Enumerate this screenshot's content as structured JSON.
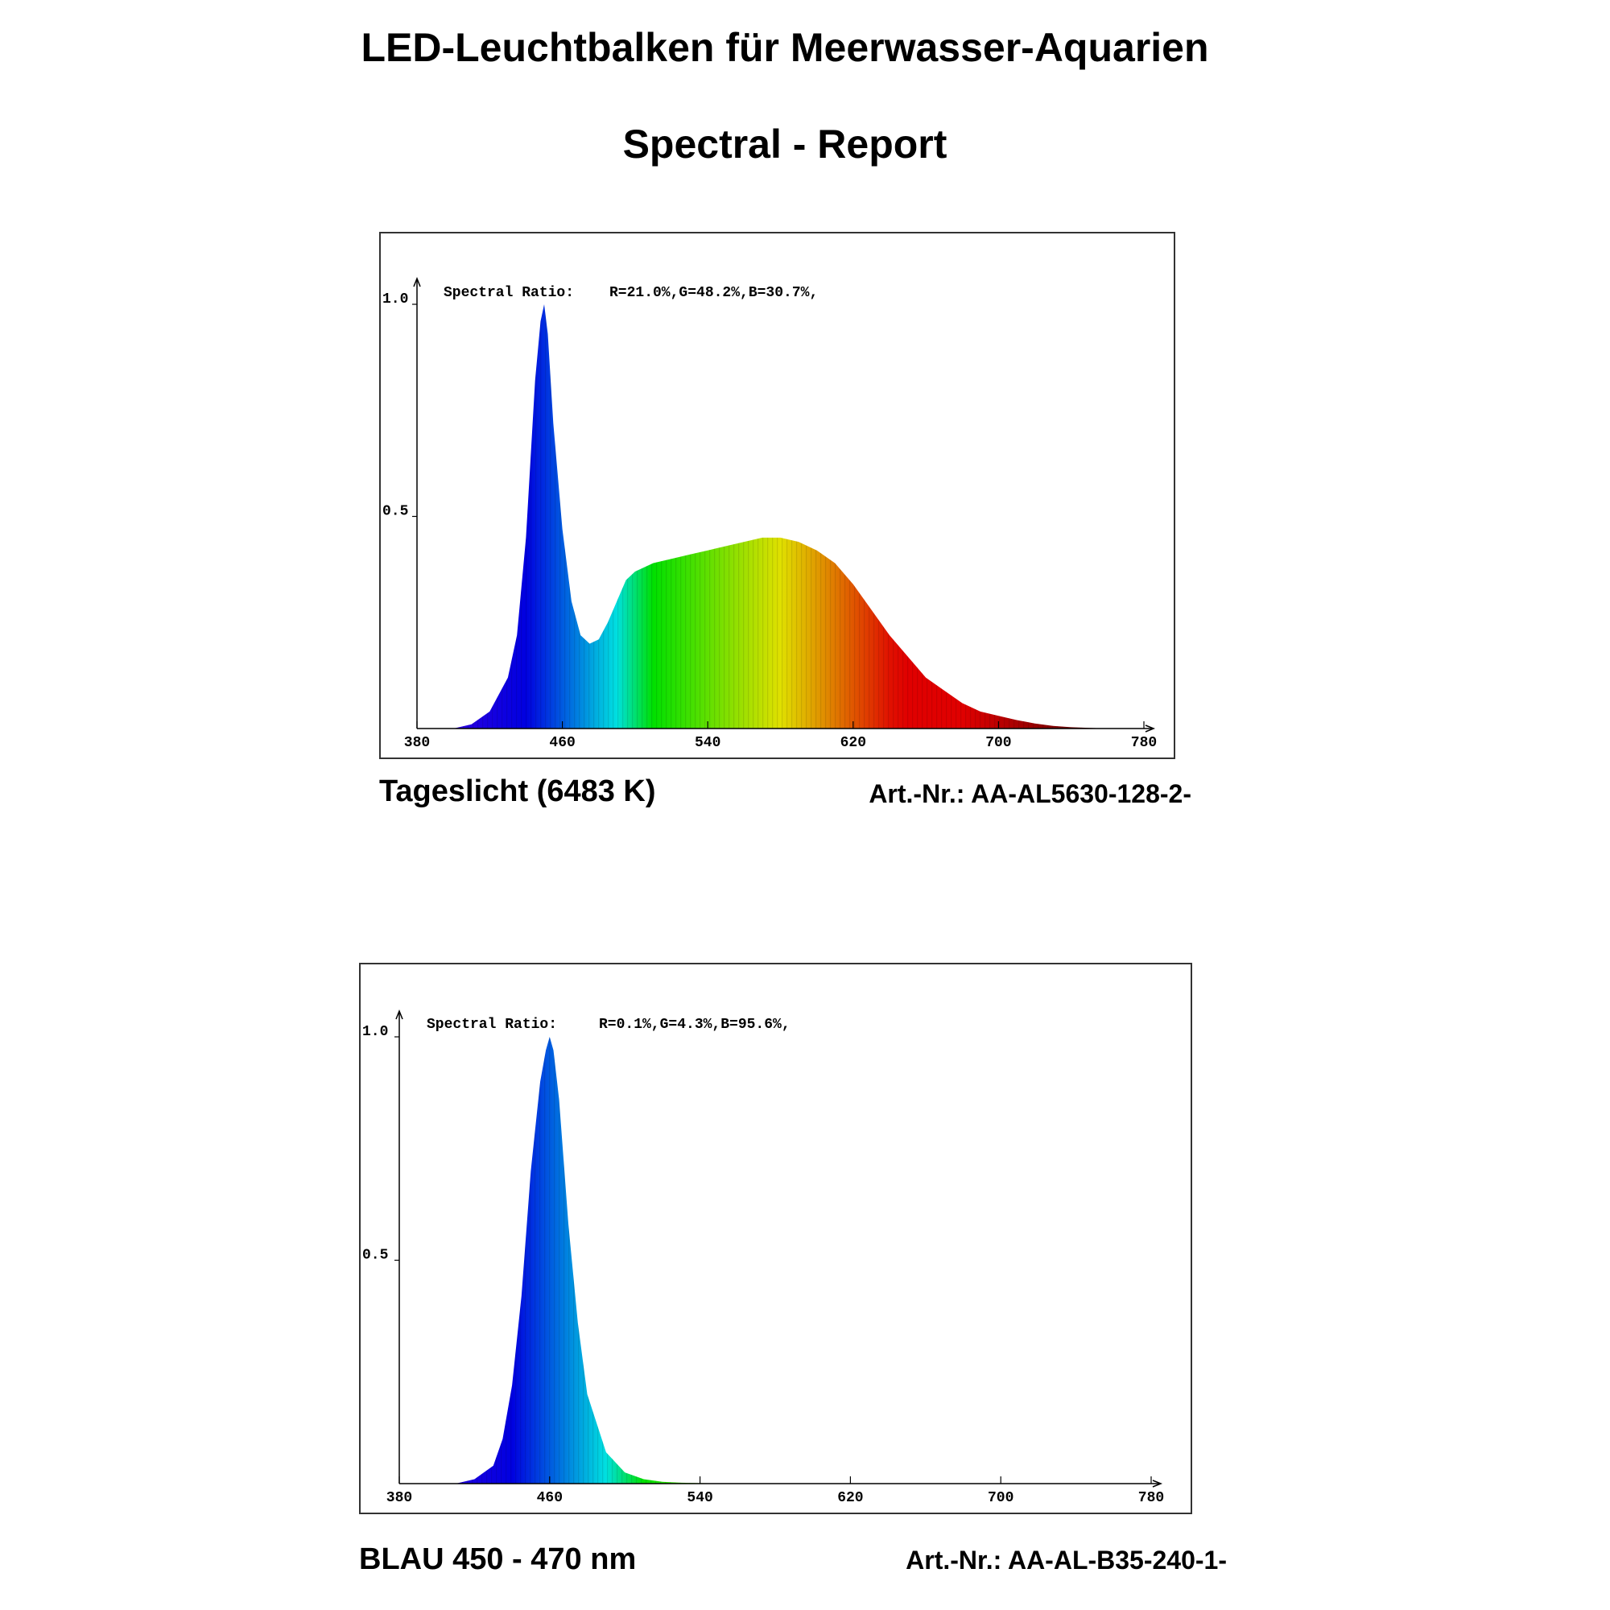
{
  "page": {
    "title": "LED-Leuchtbalken für Meerwasser-Aquarien",
    "subtitle": "Spectral - Report"
  },
  "charts": [
    {
      "name": "Tageslicht (6483 K)",
      "article": "Art.-Nr.: AA-AL5630-128-2-",
      "ratio_label": "Spectral Ratio:",
      "ratio_values": "R=21.0%,G=48.2%,B=30.7%,"
    },
    {
      "name": "BLAU 450 - 470 nm",
      "article": "Art.-Nr.: AA-AL-B35-240-1-",
      "ratio_label": "Spectral Ratio:",
      "ratio_values": "R=0.1%,G=4.3%,B=95.6%,"
    }
  ],
  "chart_data": [
    {
      "type": "area",
      "title": "",
      "xlabel": "",
      "ylabel": "",
      "xlim": [
        380,
        780
      ],
      "ylim": [
        0,
        1.0
      ],
      "x_ticks": [
        "380",
        "460",
        "540",
        "620",
        "700",
        "780"
      ],
      "y_ticks": [
        "0.5",
        "1.0"
      ],
      "grid": false,
      "fill": "spectral color gradient by wavelength",
      "series": [
        {
          "x": [
            380,
            400,
            410,
            420,
            430,
            435,
            440,
            445,
            448,
            450,
            452,
            455,
            460,
            465,
            470,
            475,
            480,
            485,
            490,
            495,
            500,
            510,
            520,
            530,
            540,
            550,
            560,
            570,
            580,
            590,
            600,
            610,
            620,
            630,
            640,
            650,
            660,
            670,
            680,
            690,
            700,
            710,
            720,
            730,
            740,
            760,
            780
          ],
          "values": [
            0,
            0,
            0.01,
            0.04,
            0.12,
            0.22,
            0.45,
            0.82,
            0.96,
            1.0,
            0.93,
            0.72,
            0.47,
            0.3,
            0.22,
            0.2,
            0.21,
            0.25,
            0.3,
            0.35,
            0.37,
            0.39,
            0.4,
            0.41,
            0.42,
            0.43,
            0.44,
            0.45,
            0.45,
            0.44,
            0.42,
            0.39,
            0.34,
            0.28,
            0.22,
            0.17,
            0.12,
            0.09,
            0.06,
            0.04,
            0.03,
            0.02,
            0.012,
            0.006,
            0.003,
            0,
            0
          ]
        }
      ]
    },
    {
      "type": "area",
      "title": "",
      "xlabel": "",
      "ylabel": "",
      "xlim": [
        380,
        780
      ],
      "ylim": [
        0,
        1.0
      ],
      "x_ticks": [
        "380",
        "460",
        "540",
        "620",
        "700",
        "780"
      ],
      "y_ticks": [
        "0.5",
        "1.0"
      ],
      "grid": false,
      "fill": "spectral color gradient by wavelength",
      "series": [
        {
          "x": [
            380,
            410,
            420,
            430,
            435,
            440,
            445,
            450,
            455,
            458,
            460,
            462,
            465,
            470,
            475,
            480,
            490,
            500,
            510,
            520,
            530,
            540,
            560,
            780
          ],
          "values": [
            0,
            0,
            0.01,
            0.04,
            0.1,
            0.22,
            0.42,
            0.7,
            0.9,
            0.97,
            1.0,
            0.97,
            0.86,
            0.58,
            0.36,
            0.2,
            0.07,
            0.025,
            0.01,
            0.004,
            0.002,
            0.001,
            0,
            0
          ]
        }
      ]
    }
  ]
}
